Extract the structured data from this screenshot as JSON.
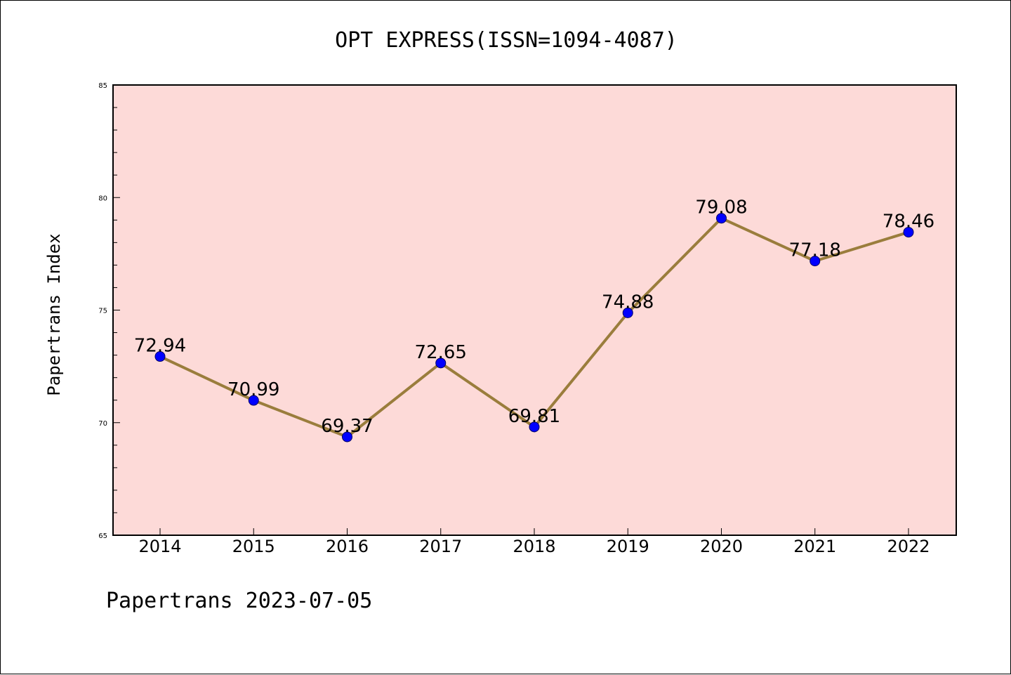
{
  "chart_data": {
    "type": "line",
    "title": "OPT EXPRESS(ISSN=1094-4087)",
    "ylabel": "Papertrans Index",
    "xlabel": "",
    "footer": "Papertrans 2023-07-05",
    "x": [
      "2014",
      "2015",
      "2016",
      "2017",
      "2018",
      "2019",
      "2020",
      "2021",
      "2022"
    ],
    "values": [
      72.94,
      70.99,
      69.37,
      72.65,
      69.81,
      74.88,
      79.08,
      77.18,
      78.46
    ],
    "data_labels": [
      "72.94",
      "70.99",
      "69.37",
      "72.65",
      "69.81",
      "74.88",
      "79.08",
      "77.18",
      "78.46"
    ],
    "ylim": [
      65,
      85
    ],
    "yticks": [
      "65",
      "70",
      "75",
      "80",
      "85"
    ],
    "yminor_step": 1,
    "grid": false,
    "legend": "none",
    "colors": {
      "plot_background": "#fddad8",
      "line": "#9a7d3c",
      "marker": "#0000ff",
      "marker_edge": "#000066"
    }
  }
}
